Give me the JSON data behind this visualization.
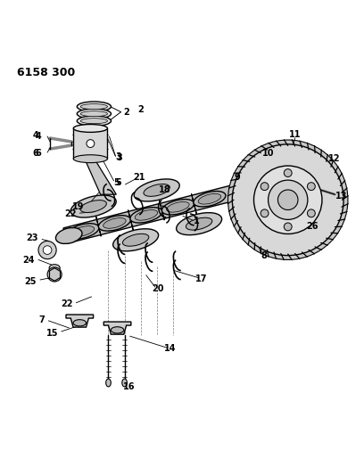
{
  "title": "6158 300",
  "bg_color": "#ffffff",
  "line_color": "#000000",
  "fig_width": 4.08,
  "fig_height": 5.33,
  "dpi": 100
}
